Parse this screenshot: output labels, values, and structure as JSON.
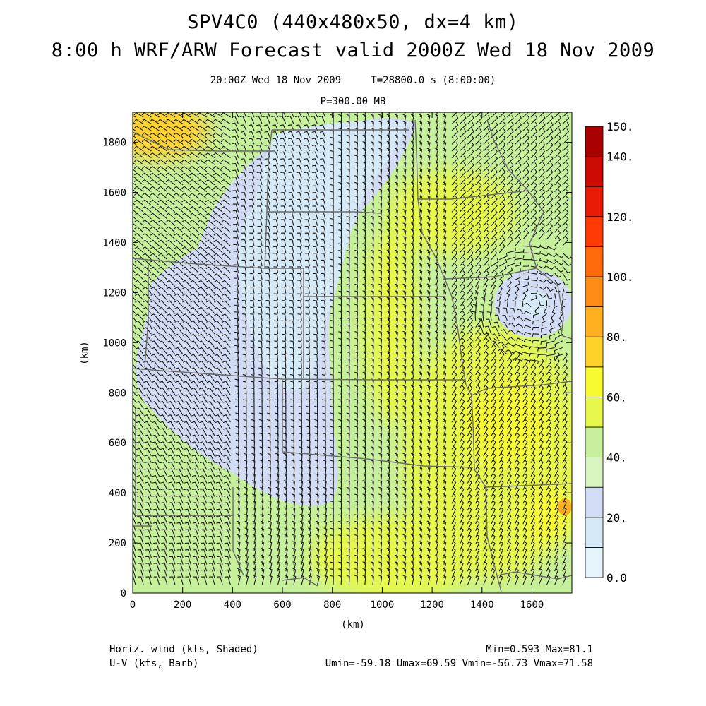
{
  "header": {
    "title_line1": "SPV4C0 (440x480x50, dx=4 km)",
    "title_line2": "8:00 h WRF/ARW Forecast valid 2000Z Wed 18 Nov 2009",
    "subtitle_time": "20:00Z Wed 18 Nov 2009     T=28800.0 s (8:00:00)",
    "subtitle_level": "P=300.00 MB"
  },
  "footer": {
    "shaded_label": "Horiz. wind (kts, Shaded)",
    "barb_label": "U-V (kts, Barb)",
    "minmax": "Min=0.593 Max=81.1",
    "uv_range": "Umin=-59.18 Umax=69.59 Vmin=-56.73 Vmax=71.58"
  },
  "chart_data": {
    "type": "heatmap",
    "xlabel": "(km)",
    "ylabel": "(km)",
    "xlim": [
      0,
      1760
    ],
    "ylim": [
      0,
      1920
    ],
    "x_ticks": [
      0,
      200,
      400,
      600,
      800,
      1000,
      1200,
      1400,
      1600
    ],
    "y_ticks": [
      0,
      200,
      400,
      600,
      800,
      1000,
      1200,
      1400,
      1600,
      1800
    ],
    "colorbar": {
      "levels": [
        0,
        10,
        20,
        30,
        40,
        50,
        60,
        70,
        80,
        90,
        100,
        110,
        120,
        130,
        140,
        150
      ],
      "labels": [
        "0.0",
        "20.",
        "40.",
        "60.",
        "80.",
        "100.",
        "120.",
        "140.",
        "150."
      ],
      "colors": [
        "#e6f4fb",
        "#d6e9f6",
        "#d2dcf4",
        "#d8f5c0",
        "#c6f09c",
        "#e6f84c",
        "#f8fa30",
        "#ffd22a",
        "#ffb01e",
        "#ff8a14",
        "#ff6a0a",
        "#ff3a05",
        "#e81a05",
        "#cc0b05",
        "#a80000"
      ]
    },
    "field": {
      "background_color": "#c6f09c",
      "regions": [
        {
          "name": "slow-core",
          "color": "#d2dcf4"
        },
        {
          "name": "very-slow-core",
          "color": "#d6e9f6"
        },
        {
          "name": "cyclone-low",
          "color": "#d2dcf4"
        },
        {
          "name": "jet-streak",
          "color": "#e6f84c"
        },
        {
          "name": "wind-maximum",
          "color": "#f8fa30"
        }
      ]
    },
    "overlay": "wind barbs (U-V, kts)",
    "map_overlay": "US state boundaries"
  }
}
